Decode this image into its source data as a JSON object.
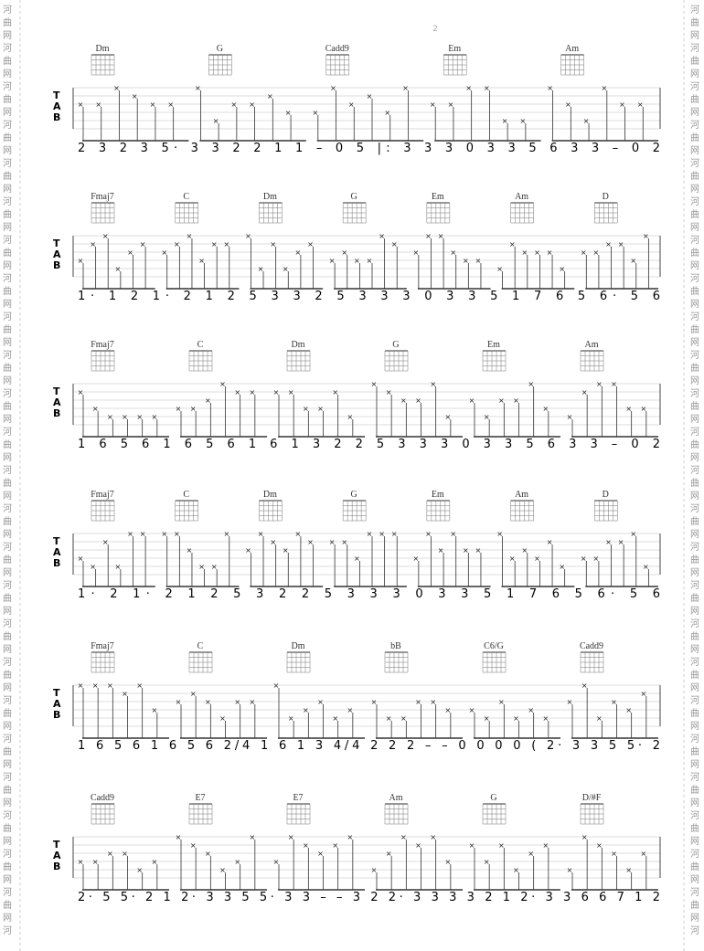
{
  "page_number": "2",
  "watermark": [
    "河",
    "曲",
    "网"
  ],
  "tab_label": [
    "T",
    "A",
    "B"
  ],
  "systems": [
    {
      "chords": [
        "Dm",
        "G",
        "Cadd9",
        "Em",
        "Am"
      ],
      "notation": "2 3 2 3 5·  3 3 2   2 1 1  –  0 5  |: 3 3 3   0 3 3 5   6 3 3  –  0 2"
    },
    {
      "chords": [
        "Fmaj7",
        "C",
        "Dm",
        "G",
        "Em",
        "Am",
        "D"
      ],
      "notation": "1·   1 2  1·  2   1 2 5 3 3 2  5   3 3 3   0 3 3 5   1 7 6 5 6·  5 6"
    },
    {
      "chords": [
        "Fmaj7",
        "C",
        "Dm",
        "G",
        "Em",
        "Am"
      ],
      "notation": "1 6  5 6 1 6  5 6   1 6 1 3 2 2  5   3 3 3   0 3 3 5   6 3 3  –  0 2"
    },
    {
      "chords": [
        "Fmaj7",
        "C",
        "Dm",
        "G",
        "Em",
        "Am",
        "D"
      ],
      "notation": "1·   2 1·   2   1 2 5 3 2 2  5   3 3 3   0 3 3 5   1 7 6 5 6·  5 6"
    },
    {
      "chords": [
        "Fmaj7",
        "C",
        "Dm",
        "bB",
        "C6/G",
        "Cadd9"
      ],
      "notation": "1 6  5 6 1 6  5 6  2/4  1 6 1 3  4/4  2 2 2 – –   0 0 0 0  ( 2· 3 3 5 5·  2"
    },
    {
      "chords": [
        "Cadd9",
        "E7",
        "E7",
        "Am",
        "G",
        "D/#F"
      ],
      "notation": "2·  5 5·  2 1  2· 3 3 5 5·   3  3 – –  3 2   2· 3 3 3 3   2 1  2· 3 3 6 6 7 1 2"
    }
  ]
}
